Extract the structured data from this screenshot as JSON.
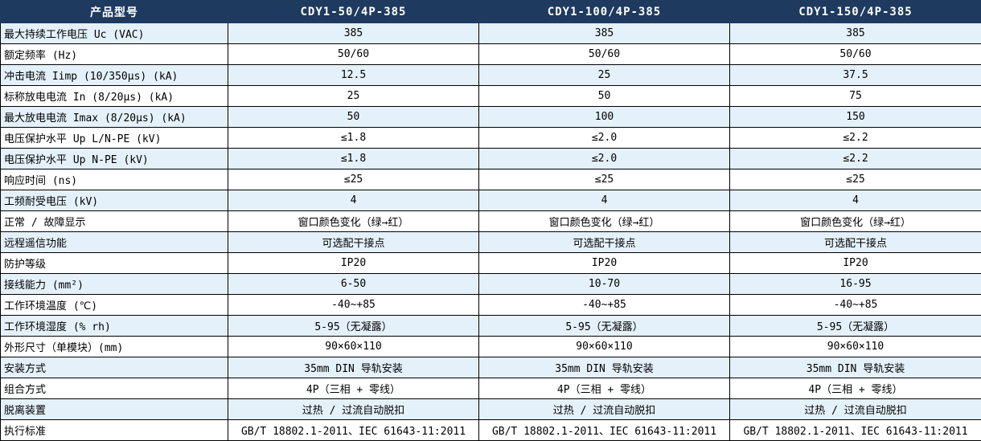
{
  "colors": {
    "header_bg": "#1e3a5f",
    "header_text": "#ffffff",
    "row_alt_bg": "#e4f1fb",
    "row_bg": "#ffffff",
    "border": "#000000"
  },
  "table": {
    "corner_label": "产品型号",
    "columns": [
      "CDY1-50/4P-385",
      "CDY1-100/4P-385",
      "CDY1-150/4P-385"
    ],
    "rows": [
      {
        "label": "最大持续工作电压 Uc (VAC)",
        "values": [
          "385",
          "385",
          "385"
        ]
      },
      {
        "label": "额定频率 (Hz)",
        "values": [
          "50/60",
          "50/60",
          "50/60"
        ]
      },
      {
        "label": "冲击电流 Iimp (10/350μs) (kA)",
        "values": [
          "12.5",
          "25",
          "37.5"
        ]
      },
      {
        "label": "标称放电电流 In (8/20μs) (kA)",
        "values": [
          "25",
          "50",
          "75"
        ]
      },
      {
        "label": "最大放电电流 Imax (8/20μs) (kA)",
        "values": [
          "50",
          "100",
          "150"
        ]
      },
      {
        "label": "电压保护水平 Up L/N-PE (kV)",
        "values": [
          "≤1.8",
          "≤2.0",
          "≤2.2"
        ]
      },
      {
        "label": "电压保护水平 Up N-PE (kV)",
        "values": [
          "≤1.8",
          "≤2.0",
          "≤2.2"
        ]
      },
      {
        "label": "响应时间 (ns)",
        "values": [
          "≤25",
          "≤25",
          "≤25"
        ]
      },
      {
        "label": "工频耐受电压 (kV)",
        "values": [
          "4",
          "4",
          "4"
        ]
      },
      {
        "label": "正常 / 故障显示",
        "values": [
          "窗口颜色变化（绿→红）",
          "窗口颜色变化（绿→红）",
          "窗口颜色变化（绿→红）"
        ]
      },
      {
        "label": "远程遥信功能",
        "values": [
          "可选配干接点",
          "可选配干接点",
          "可选配干接点"
        ]
      },
      {
        "label": "防护等级",
        "values": [
          "IP20",
          "IP20",
          "IP20"
        ]
      },
      {
        "label": "接线能力 (mm²)",
        "values": [
          "6-50",
          "10-70",
          "16-95"
        ]
      },
      {
        "label": "工作环境温度 (℃)",
        "values": [
          "-40~+85",
          "-40~+85",
          "-40~+85"
        ]
      },
      {
        "label": "工作环境湿度 (% rh)",
        "values": [
          "5-95（无凝露）",
          "5-95（无凝露）",
          "5-95（无凝露）"
        ]
      },
      {
        "label": "外形尺寸（单模块）(mm)",
        "values": [
          "90×60×110",
          "90×60×110",
          "90×60×110"
        ]
      },
      {
        "label": "安装方式",
        "values": [
          "35mm DIN 导轨安装",
          "35mm DIN 导轨安装",
          "35mm DIN 导轨安装"
        ]
      },
      {
        "label": "组合方式",
        "values": [
          "4P（三相 + 零线）",
          "4P（三相 + 零线）",
          "4P（三相 + 零线）"
        ]
      },
      {
        "label": "脱离装置",
        "values": [
          "过热 / 过流自动脱扣",
          "过热 / 过流自动脱扣",
          "过热 / 过流自动脱扣"
        ]
      },
      {
        "label": "执行标准",
        "values": [
          "GB/T 18802.1-2011、IEC 61643-11:2011",
          "GB/T 18802.1-2011、IEC 61643-11:2011",
          "GB/T 18802.1-2011、IEC 61643-11:2011"
        ]
      }
    ]
  }
}
